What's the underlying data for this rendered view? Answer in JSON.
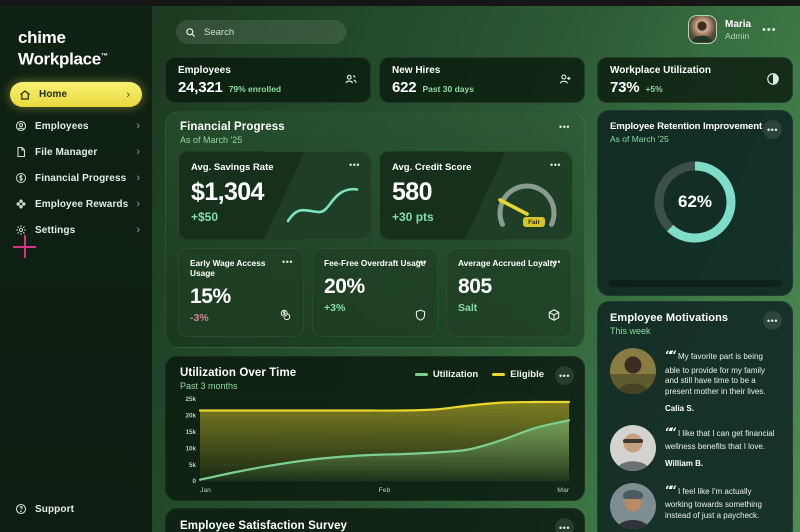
{
  "brand": {
    "line1": "chime",
    "line2": "Workplace",
    "tm": "TM"
  },
  "sidebar": {
    "items": [
      {
        "label": "Home"
      },
      {
        "label": "Employees"
      },
      {
        "label": "File Manager"
      },
      {
        "label": "Financial Progress"
      },
      {
        "label": "Employee Rewards"
      },
      {
        "label": "Settings"
      }
    ],
    "support_label": "Support"
  },
  "topbar": {
    "search_placeholder": "Search",
    "user": {
      "name": "Maria",
      "role": "Admin"
    }
  },
  "stats": [
    {
      "title": "Employees",
      "value": "24,321",
      "sub": "79% enrolled"
    },
    {
      "title": "New Hires",
      "value": "622",
      "sub": "Past 30 days"
    },
    {
      "title": "Workplace Utilization",
      "value": "73%",
      "sub": "+5%"
    }
  ],
  "financial": {
    "title": "Financial Progress",
    "subtitle": "As of March '25",
    "savings": {
      "title": "Avg. Savings Rate",
      "value": "$1,304",
      "delta": "+$50"
    },
    "credit": {
      "title": "Avg. Credit Score",
      "value": "580",
      "delta": "+30 pts",
      "badge": "Fair"
    },
    "small_cards": [
      {
        "title": "Early Wage Access Usage",
        "value": "15%",
        "delta": "-3%",
        "trend": "neg"
      },
      {
        "title": "Fee-Free Overdraft Usage",
        "value": "20%",
        "delta": "+3%",
        "trend": "pos"
      },
      {
        "title": "Average Accrued Loyalty",
        "value": "805",
        "delta": "Salt",
        "trend": "pos"
      }
    ]
  },
  "chart_data": {
    "type": "area",
    "title": "Utilization Over Time",
    "subtitle": "Past 3 months",
    "x_ticks": [
      "Jan",
      "Feb",
      "Mar"
    ],
    "y_tick_values": [
      0,
      5000,
      10000,
      15000,
      20000,
      25000
    ],
    "y_tick_labels": [
      "0",
      "5k",
      "10k",
      "15k",
      "20k",
      "25k"
    ],
    "ylim": [
      0,
      25000
    ],
    "grid": true,
    "legend_position": "top-right",
    "series": [
      {
        "name": "Utilization",
        "color": "#7ccf8e",
        "values": [
          400,
          2600,
          4500,
          6100,
          7200,
          7900,
          8200,
          8700,
          9600,
          12500,
          16200,
          18500
        ]
      },
      {
        "name": "Eligible",
        "color": "#e9d62e",
        "values": [
          21500,
          21500,
          21500,
          21500,
          21500,
          21500,
          21500,
          21800,
          23000,
          23900,
          24100,
          24100
        ]
      }
    ]
  },
  "retention": {
    "title": "Employee Retention Improvement",
    "subtitle": "As of March '25",
    "percent": 62,
    "label": "62%"
  },
  "motivations": {
    "title": "Employee Motivations",
    "subtitle": "This week",
    "quotes": [
      {
        "text": "My favorite part is being able to provide for my family and still have time to be a present mother in their lives.",
        "name": "Calia S."
      },
      {
        "text": "I like that I can get financial wellness benefits that I love.",
        "name": "William B."
      },
      {
        "text": "I feel like I'm actually working towards something instead of just a paycheck.",
        "name": ""
      }
    ]
  },
  "survey": {
    "title": "Employee Satisfaction Survey"
  },
  "colors": {
    "accent_yellow": "#e9d93e",
    "accent_mint": "#7fe3c4",
    "accent_green_text": "#8fd9a0",
    "negative_pink": "#cf8399",
    "donut_teal": "#7fdcc8",
    "donut_track": "#3c4f4b"
  }
}
